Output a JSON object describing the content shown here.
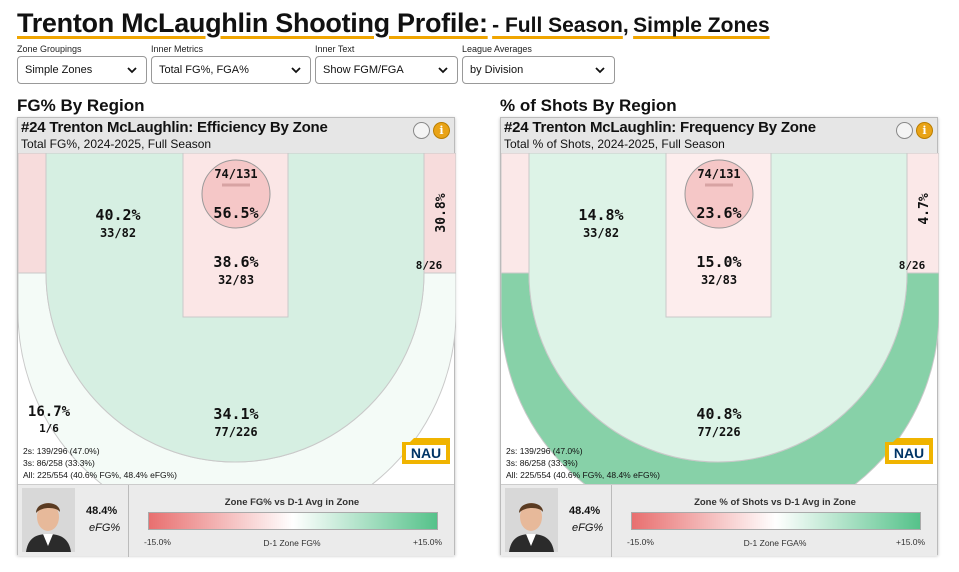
{
  "header": {
    "title": "Trenton McLaughlin Shooting Profile:",
    "season_label": "- Full Season",
    "separator": ",",
    "zones_label": "Simple Zones"
  },
  "controls": [
    {
      "label": "Zone Groupings",
      "value": "Simple Zones"
    },
    {
      "label": "Inner Metrics",
      "value": "Total FG%, FGA%"
    },
    {
      "label": "Inner Text",
      "value": "Show FGM/FGA"
    },
    {
      "label": "League Averages",
      "value": "by Division"
    }
  ],
  "stats": {
    "twos": "2s: 139/296 (47.0%)",
    "threes": "3s: 86/258 (33.3%)",
    "all": "All: 225/554 (40.6% FG%, 48.4% eFG%)",
    "efg_value": "48.4%",
    "efg_label": "eFG%"
  },
  "logo_text": "NAU",
  "info_glyph": "i",
  "panels": [
    {
      "section_title": "FG% By Region",
      "title": "#24 Trenton McLaughlin: Efficiency By Zone",
      "subtitle": "Total FG%, 2024-2025, Full Season",
      "legend_title": "Zone FG% vs D-1 Avg in Zone",
      "legend_min": "-15.0%",
      "legend_mid": "D-1 Zone FG%",
      "legend_max": "+15.0%",
      "colors": {
        "corner3": "#f7dcdc",
        "mid": "#d6efe2",
        "paint": "#fbe6e6",
        "rim": "#f5c7c7",
        "above3": "#f4fbf7"
      },
      "zones": {
        "rim": {
          "value": "56.5%",
          "detail": "74/131"
        },
        "paint": {
          "value": "38.6%",
          "detail": "32/83"
        },
        "midrange": {
          "value": "40.2%",
          "detail": "33/82"
        },
        "right_corner3": {
          "value": "30.8%",
          "detail": "8/26"
        },
        "left_corner3": {
          "value": "16.7%",
          "detail": "1/6"
        },
        "above_break3": {
          "value": "34.1%",
          "detail": "77/226"
        }
      }
    },
    {
      "section_title": "% of Shots By Region",
      "title": "#24 Trenton McLaughlin: Frequency By Zone",
      "subtitle": "Total % of Shots, 2024-2025, Full Season",
      "legend_title": "Zone % of Shots vs D-1 Avg in Zone",
      "legend_min": "-15.0%",
      "legend_mid": "D-1 Zone FGA%",
      "legend_max": "+15.0%",
      "colors": {
        "corner3": "#fbe8e8",
        "mid": "#ddf3e7",
        "paint": "#fdeded",
        "rim": "#f5c7c7",
        "above3": "#87d1a8"
      },
      "zones": {
        "rim": {
          "value": "23.6%",
          "detail": "74/131"
        },
        "paint": {
          "value": "15.0%",
          "detail": "32/83"
        },
        "midrange": {
          "value": "14.8%",
          "detail": "33/82"
        },
        "right_corner3": {
          "value": "4.7%",
          "detail": "8/26"
        },
        "left_corner3": {
          "value": "",
          "detail": ""
        },
        "above_break3": {
          "value": "40.8%",
          "detail": "77/226"
        }
      }
    }
  ]
}
